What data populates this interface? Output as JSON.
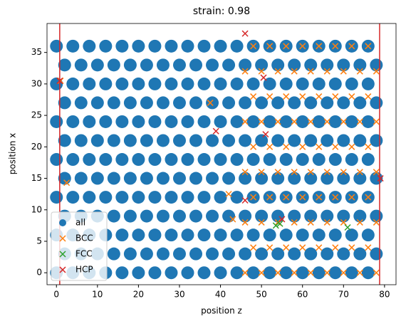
{
  "chart_data": {
    "type": "scatter",
    "title": "strain: 0.98",
    "xlabel": "position z",
    "ylabel": "position x",
    "xlim": [
      -2.3,
      82.8
    ],
    "ylim": [
      -1.9,
      39.6
    ],
    "xticks": [
      0,
      10,
      20,
      30,
      40,
      50,
      60,
      70,
      80
    ],
    "yticks": [
      0,
      5,
      10,
      15,
      20,
      25,
      30,
      35
    ],
    "legend": "lower left",
    "vlines": [
      0.8,
      78.8
    ],
    "vline_color": "#d62728",
    "series": [
      {
        "name": "all",
        "color": "#1f77b4",
        "marker": "o",
        "x": [
          0,
          4,
          8,
          12,
          16,
          20,
          24,
          28,
          32,
          36,
          40,
          44,
          48,
          52,
          56,
          60,
          64,
          68,
          72,
          76,
          2,
          6,
          10,
          14,
          18,
          22,
          26,
          30,
          34,
          38,
          42,
          46,
          50,
          54,
          58,
          62,
          66,
          70,
          74,
          78,
          0,
          4,
          8,
          12,
          16,
          20,
          24,
          28,
          32,
          36,
          40,
          44,
          48,
          52,
          56,
          60,
          64,
          68,
          72,
          76,
          2,
          6,
          10,
          14,
          18,
          22,
          26,
          30,
          34,
          38,
          42,
          46,
          50,
          54,
          58,
          62,
          66,
          70,
          74,
          78,
          0,
          4,
          8,
          12,
          16,
          20,
          24,
          28,
          32,
          36,
          40,
          44,
          48,
          52,
          56,
          60,
          64,
          68,
          72,
          76,
          2,
          6,
          10,
          14,
          18,
          22,
          26,
          30,
          34,
          38,
          42,
          46,
          50,
          54,
          58,
          62,
          66,
          70,
          74,
          78,
          0,
          4,
          8,
          12,
          16,
          20,
          24,
          28,
          32,
          36,
          40,
          44,
          48,
          52,
          56,
          60,
          64,
          68,
          72,
          76,
          2,
          6,
          10,
          14,
          18,
          22,
          26,
          30,
          34,
          38,
          42,
          46,
          50,
          54,
          58,
          62,
          66,
          70,
          74,
          78,
          0,
          4,
          8,
          12,
          16,
          20,
          24,
          28,
          32,
          36,
          40,
          44,
          48,
          52,
          56,
          60,
          64,
          68,
          72,
          76,
          2,
          6,
          10,
          14,
          18,
          22,
          26,
          30,
          34,
          38,
          42,
          46,
          50,
          54,
          58,
          62,
          66,
          70,
          74,
          78,
          0,
          4,
          8,
          12,
          16,
          20,
          24,
          28,
          32,
          36,
          40,
          44,
          48,
          52,
          56,
          60,
          64,
          68,
          72,
          76,
          2,
          6,
          10,
          14,
          18,
          22,
          26,
          30,
          34,
          38,
          42,
          46,
          50,
          54,
          58,
          62,
          66,
          70,
          74,
          78,
          0,
          4,
          8,
          12,
          16,
          20,
          24,
          28,
          32,
          36,
          40,
          44,
          48,
          52,
          56,
          60,
          64,
          68,
          72,
          76
        ],
        "values": [
          0,
          0,
          0,
          0,
          0,
          0,
          0,
          0,
          0,
          0,
          0,
          0,
          0,
          0,
          0,
          0,
          0,
          0,
          0,
          0,
          3,
          3,
          3,
          3,
          3,
          3,
          3,
          3,
          3,
          3,
          3,
          3,
          3,
          3,
          3,
          3,
          3,
          3,
          3,
          3,
          6,
          6,
          6,
          6,
          6,
          6,
          6,
          6,
          6,
          6,
          6,
          6,
          6,
          6,
          6,
          6,
          6,
          6,
          6,
          6,
          9,
          9,
          9,
          9,
          9,
          9,
          9,
          9,
          9,
          9,
          9,
          9,
          9,
          9,
          9,
          9,
          9,
          9,
          9,
          9,
          12,
          12,
          12,
          12,
          12,
          12,
          12,
          12,
          12,
          12,
          12,
          12,
          12,
          12,
          12,
          12,
          12,
          12,
          12,
          12,
          15,
          15,
          15,
          15,
          15,
          15,
          15,
          15,
          15,
          15,
          15,
          15,
          15,
          15,
          15,
          15,
          15,
          15,
          15,
          15,
          18,
          18,
          18,
          18,
          18,
          18,
          18,
          18,
          18,
          18,
          18,
          18,
          18,
          18,
          18,
          18,
          18,
          18,
          18,
          18,
          21,
          21,
          21,
          21,
          21,
          21,
          21,
          21,
          21,
          21,
          21,
          21,
          21,
          21,
          21,
          21,
          21,
          21,
          21,
          21,
          24,
          24,
          24,
          24,
          24,
          24,
          24,
          24,
          24,
          24,
          24,
          24,
          24,
          24,
          24,
          24,
          24,
          24,
          24,
          24,
          27,
          27,
          27,
          27,
          27,
          27,
          27,
          27,
          27,
          27,
          27,
          27,
          27,
          27,
          27,
          27,
          27,
          27,
          27,
          27,
          30,
          30,
          30,
          30,
          30,
          30,
          30,
          30,
          30,
          30,
          30,
          30,
          30,
          30,
          30,
          30,
          30,
          30,
          30,
          30,
          33,
          33,
          33,
          33,
          33,
          33,
          33,
          33,
          33,
          33,
          33,
          33,
          33,
          33,
          33,
          33,
          33,
          33,
          33,
          33,
          36,
          36,
          36,
          36,
          36,
          36,
          36,
          36,
          36,
          36,
          36,
          36,
          36,
          36,
          36,
          36,
          36,
          36,
          36,
          36
        ]
      },
      {
        "name": "BCC",
        "color": "#ff7f0e",
        "marker": "x",
        "x": [
          46,
          50,
          54,
          58,
          62,
          66,
          70,
          74,
          78,
          48,
          52,
          56,
          60,
          64,
          68,
          72,
          76,
          46,
          50,
          54,
          58,
          62,
          66,
          70,
          74,
          78,
          48,
          52,
          56,
          60,
          64,
          68,
          72,
          76,
          46,
          50,
          54,
          58,
          62,
          66,
          70,
          74,
          78,
          48,
          52,
          56,
          60,
          64,
          68,
          72,
          76,
          46,
          50,
          54,
          58,
          62,
          66,
          70,
          74,
          78,
          48,
          52,
          56,
          60,
          64,
          68,
          72,
          76,
          46,
          50,
          54,
          58,
          62,
          66,
          70,
          74,
          78,
          48,
          52,
          56,
          60,
          64,
          68,
          72,
          76,
          37.5,
          42,
          2.5,
          1,
          43
        ],
        "values": [
          0,
          0,
          0,
          0,
          0,
          0,
          0,
          0,
          0,
          4,
          4,
          4,
          4,
          4,
          4,
          4,
          4,
          8,
          8,
          8,
          8,
          8,
          8,
          8,
          8,
          8,
          12,
          12,
          12,
          12,
          12,
          12,
          12,
          12,
          16,
          16,
          16,
          16,
          16,
          16,
          16,
          16,
          16,
          20,
          20,
          20,
          20,
          20,
          20,
          20,
          20,
          24,
          24,
          24,
          24,
          24,
          24,
          24,
          24,
          24,
          28,
          28,
          28,
          28,
          28,
          28,
          28,
          28,
          32,
          32,
          32,
          32,
          32,
          32,
          32,
          32,
          32,
          36,
          36,
          36,
          36,
          36,
          36,
          36,
          36,
          27,
          12.5,
          14.3,
          30.5,
          8.5
        ]
      },
      {
        "name": "FCC",
        "color": "#2ca02c",
        "marker": "x",
        "x": [
          53.5,
          71,
          54.5
        ],
        "values": [
          7.5,
          7.2,
          7.8
        ]
      },
      {
        "name": "HCP",
        "color": "#d62728",
        "marker": "x",
        "x": [
          38.9,
          46,
          50.5,
          46,
          55,
          51,
          79,
          0.8
        ],
        "values": [
          22.5,
          38,
          31,
          11.5,
          8.5,
          22,
          15,
          30.5
        ]
      }
    ]
  }
}
